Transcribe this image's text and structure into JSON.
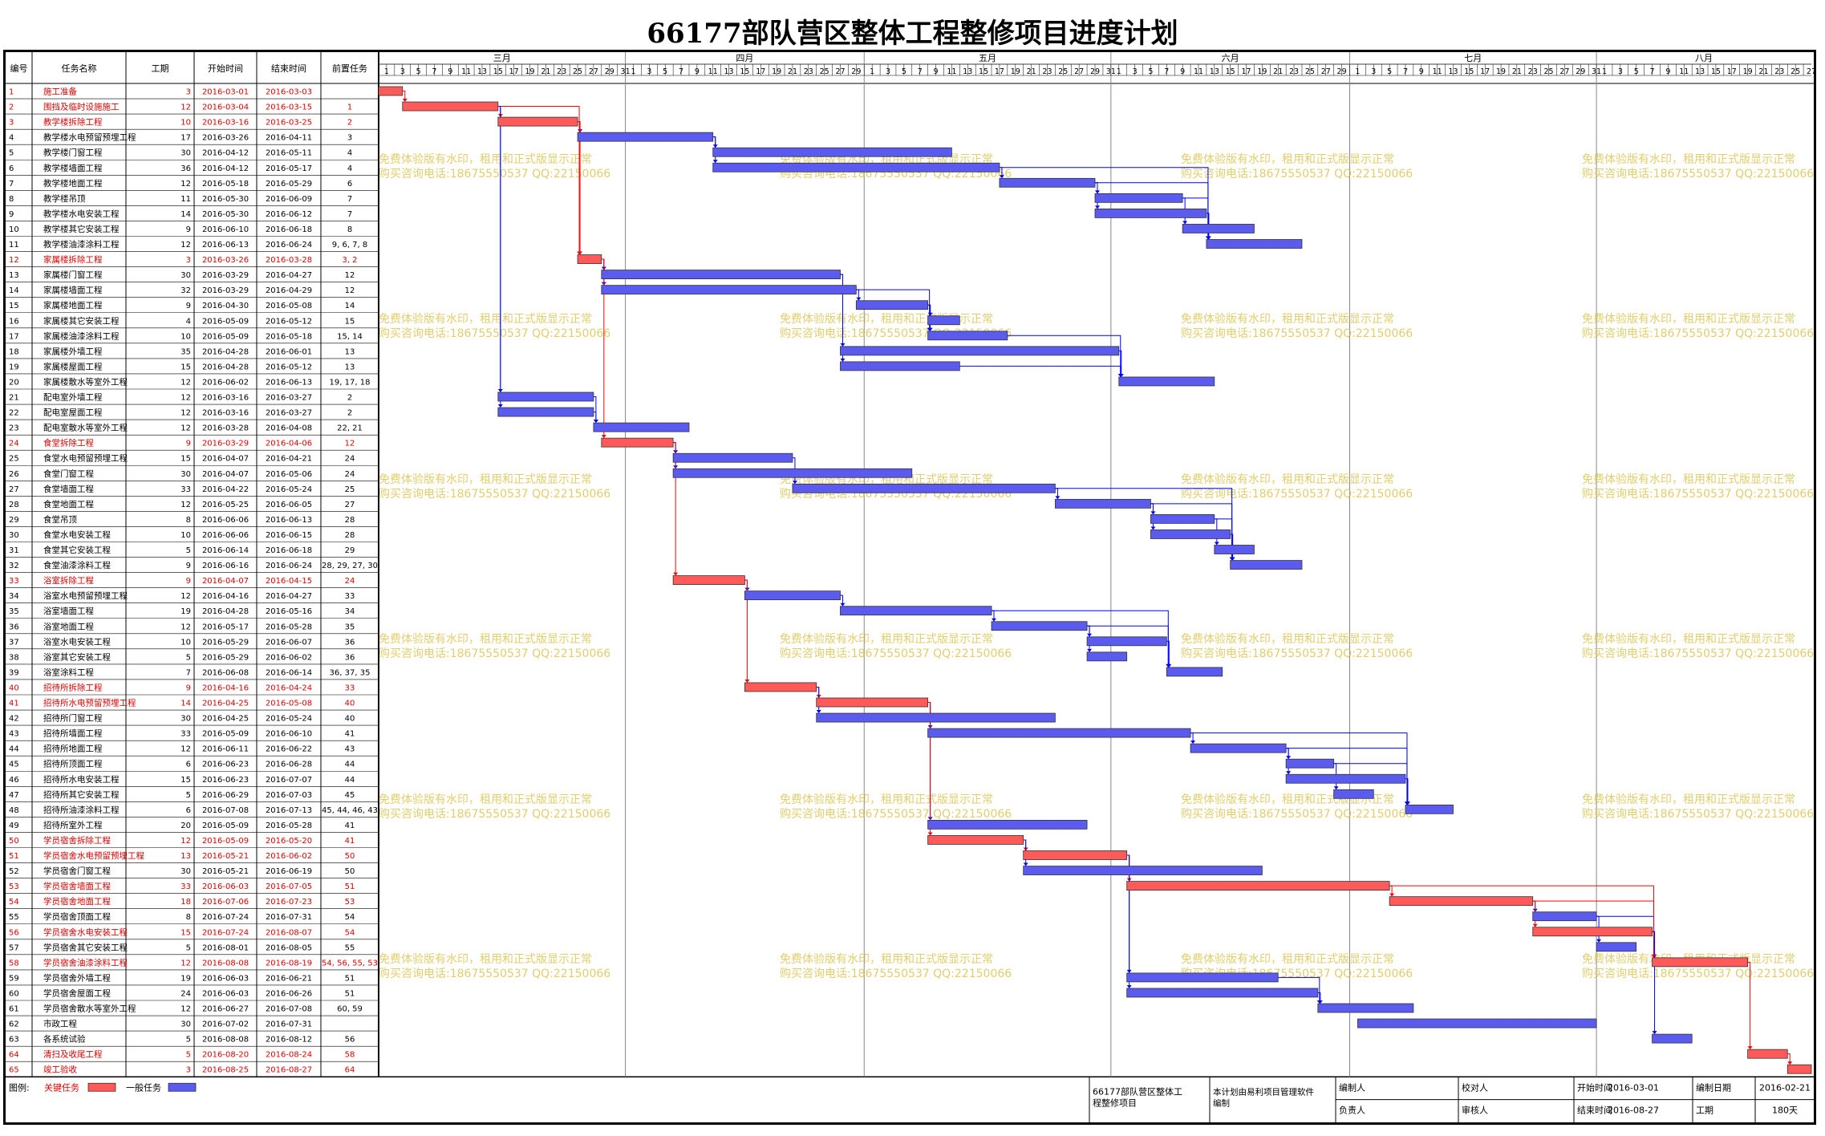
{
  "title": "66177部队营区整体工程整修项目进度计划",
  "columns": [
    "编号",
    "任务名称",
    "工期",
    "开始时间",
    "结束时间",
    "前置任务"
  ],
  "colors": {
    "critical": "#ff5a5a",
    "normal": "#5b5bf0",
    "critical_text": "#e00000",
    "link_normal": "#0000ff",
    "link_critical": "#ff0000"
  },
  "months": [
    {
      "label": "三月",
      "days": 31
    },
    {
      "label": "四月",
      "days": 30
    },
    {
      "label": "五月",
      "days": 31
    },
    {
      "label": "六月",
      "days": 30
    },
    {
      "label": "七月",
      "days": 31
    },
    {
      "label": "八月",
      "days": 27
    }
  ],
  "watermark": [
    "免费体验版有水印，租用和正式版显示正常",
    "购买咨询电话:18675550537 QQ:22150066"
  ],
  "chart_data": {
    "type": "gantt",
    "x_range": [
      "2016-03-01",
      "2016-08-27"
    ],
    "tasks": [
      {
        "id": "1",
        "name": "施工准备",
        "dur": "3",
        "start": "2016-03-01",
        "end": "2016-03-03",
        "pred": "",
        "critical": true
      },
      {
        "id": "2",
        "name": "围挡及临时设施施工",
        "dur": "12",
        "start": "2016-03-04",
        "end": "2016-03-15",
        "pred": "1",
        "critical": true
      },
      {
        "id": "3",
        "name": "教学楼拆除工程",
        "dur": "10",
        "start": "2016-03-16",
        "end": "2016-03-25",
        "pred": "2",
        "critical": true
      },
      {
        "id": "4",
        "name": "教学楼水电预留预埋工程",
        "dur": "17",
        "start": "2016-03-26",
        "end": "2016-04-11",
        "pred": "3",
        "critical": false
      },
      {
        "id": "5",
        "name": "教学楼门窗工程",
        "dur": "30",
        "start": "2016-04-12",
        "end": "2016-05-11",
        "pred": "4",
        "critical": false
      },
      {
        "id": "6",
        "name": "教学楼墙面工程",
        "dur": "36",
        "start": "2016-04-12",
        "end": "2016-05-17",
        "pred": "4",
        "critical": false
      },
      {
        "id": "7",
        "name": "教学楼地面工程",
        "dur": "12",
        "start": "2016-05-18",
        "end": "2016-05-29",
        "pred": "6",
        "critical": false
      },
      {
        "id": "8",
        "name": "教学楼吊顶",
        "dur": "11",
        "start": "2016-05-30",
        "end": "2016-06-09",
        "pred": "7",
        "critical": false
      },
      {
        "id": "9",
        "name": "教学楼水电安装工程",
        "dur": "14",
        "start": "2016-05-30",
        "end": "2016-06-12",
        "pred": "7",
        "critical": false
      },
      {
        "id": "10",
        "name": "教学楼其它安装工程",
        "dur": "9",
        "start": "2016-06-10",
        "end": "2016-06-18",
        "pred": "8",
        "critical": false
      },
      {
        "id": "11",
        "name": "教学楼油漆涂料工程",
        "dur": "12",
        "start": "2016-06-13",
        "end": "2016-06-24",
        "pred": "9, 6, 7, 8",
        "critical": false
      },
      {
        "id": "12",
        "name": "家属楼拆除工程",
        "dur": "3",
        "start": "2016-03-26",
        "end": "2016-03-28",
        "pred": "3, 2",
        "critical": true
      },
      {
        "id": "13",
        "name": "家属楼门窗工程",
        "dur": "30",
        "start": "2016-03-29",
        "end": "2016-04-27",
        "pred": "12",
        "critical": false
      },
      {
        "id": "14",
        "name": "家属楼墙面工程",
        "dur": "32",
        "start": "2016-03-29",
        "end": "2016-04-29",
        "pred": "12",
        "critical": false
      },
      {
        "id": "15",
        "name": "家属楼地面工程",
        "dur": "9",
        "start": "2016-04-30",
        "end": "2016-05-08",
        "pred": "14",
        "critical": false
      },
      {
        "id": "16",
        "name": "家属楼其它安装工程",
        "dur": "4",
        "start": "2016-05-09",
        "end": "2016-05-12",
        "pred": "15",
        "critical": false
      },
      {
        "id": "17",
        "name": "家属楼油漆涂料工程",
        "dur": "10",
        "start": "2016-05-09",
        "end": "2016-05-18",
        "pred": "15, 14",
        "critical": false
      },
      {
        "id": "18",
        "name": "家属楼外墙工程",
        "dur": "35",
        "start": "2016-04-28",
        "end": "2016-06-01",
        "pred": "13",
        "critical": false
      },
      {
        "id": "19",
        "name": "家属楼屋面工程",
        "dur": "15",
        "start": "2016-04-28",
        "end": "2016-05-12",
        "pred": "13",
        "critical": false
      },
      {
        "id": "20",
        "name": "家属楼散水等室外工程",
        "dur": "12",
        "start": "2016-06-02",
        "end": "2016-06-13",
        "pred": "19, 17, 18",
        "critical": false
      },
      {
        "id": "21",
        "name": "配电室外墙工程",
        "dur": "12",
        "start": "2016-03-16",
        "end": "2016-03-27",
        "pred": "2",
        "critical": false
      },
      {
        "id": "22",
        "name": "配电室屋面工程",
        "dur": "12",
        "start": "2016-03-16",
        "end": "2016-03-27",
        "pred": "2",
        "critical": false
      },
      {
        "id": "23",
        "name": "配电室散水等室外工程",
        "dur": "12",
        "start": "2016-03-28",
        "end": "2016-04-08",
        "pred": "22, 21",
        "critical": false
      },
      {
        "id": "24",
        "name": "食堂拆除工程",
        "dur": "9",
        "start": "2016-03-29",
        "end": "2016-04-06",
        "pred": "12",
        "critical": true
      },
      {
        "id": "25",
        "name": "食堂水电预留预埋工程",
        "dur": "15",
        "start": "2016-04-07",
        "end": "2016-04-21",
        "pred": "24",
        "critical": false
      },
      {
        "id": "26",
        "name": "食堂门窗工程",
        "dur": "30",
        "start": "2016-04-07",
        "end": "2016-05-06",
        "pred": "24",
        "critical": false
      },
      {
        "id": "27",
        "name": "食堂墙面工程",
        "dur": "33",
        "start": "2016-04-22",
        "end": "2016-05-24",
        "pred": "25",
        "critical": false
      },
      {
        "id": "28",
        "name": "食堂地面工程",
        "dur": "12",
        "start": "2016-05-25",
        "end": "2016-06-05",
        "pred": "27",
        "critical": false
      },
      {
        "id": "29",
        "name": "食堂吊顶",
        "dur": "8",
        "start": "2016-06-06",
        "end": "2016-06-13",
        "pred": "28",
        "critical": false
      },
      {
        "id": "30",
        "name": "食堂水电安装工程",
        "dur": "10",
        "start": "2016-06-06",
        "end": "2016-06-15",
        "pred": "28",
        "critical": false
      },
      {
        "id": "31",
        "name": "食堂其它安装工程",
        "dur": "5",
        "start": "2016-06-14",
        "end": "2016-06-18",
        "pred": "29",
        "critical": false
      },
      {
        "id": "32",
        "name": "食堂油漆涂料工程",
        "dur": "9",
        "start": "2016-06-16",
        "end": "2016-06-24",
        "pred": "28, 29, 27, 30",
        "critical": false
      },
      {
        "id": "33",
        "name": "浴室拆除工程",
        "dur": "9",
        "start": "2016-04-07",
        "end": "2016-04-15",
        "pred": "24",
        "critical": true
      },
      {
        "id": "34",
        "name": "浴室水电预留预埋工程",
        "dur": "12",
        "start": "2016-04-16",
        "end": "2016-04-27",
        "pred": "33",
        "critical": false
      },
      {
        "id": "35",
        "name": "浴室墙面工程",
        "dur": "19",
        "start": "2016-04-28",
        "end": "2016-05-16",
        "pred": "34",
        "critical": false
      },
      {
        "id": "36",
        "name": "浴室地面工程",
        "dur": "12",
        "start": "2016-05-17",
        "end": "2016-05-28",
        "pred": "35",
        "critical": false
      },
      {
        "id": "37",
        "name": "浴室水电安装工程",
        "dur": "10",
        "start": "2016-05-29",
        "end": "2016-06-07",
        "pred": "36",
        "critical": false
      },
      {
        "id": "38",
        "name": "浴室其它安装工程",
        "dur": "5",
        "start": "2016-05-29",
        "end": "2016-06-02",
        "pred": "36",
        "critical": false
      },
      {
        "id": "39",
        "name": "浴室涂料工程",
        "dur": "7",
        "start": "2016-06-08",
        "end": "2016-06-14",
        "pred": "36, 37, 35",
        "critical": false
      },
      {
        "id": "40",
        "name": "招待所拆除工程",
        "dur": "9",
        "start": "2016-04-16",
        "end": "2016-04-24",
        "pred": "33",
        "critical": true
      },
      {
        "id": "41",
        "name": "招待所水电预留预埋工程",
        "dur": "14",
        "start": "2016-04-25",
        "end": "2016-05-08",
        "pred": "40",
        "critical": true
      },
      {
        "id": "42",
        "name": "招待所门窗工程",
        "dur": "30",
        "start": "2016-04-25",
        "end": "2016-05-24",
        "pred": "40",
        "critical": false
      },
      {
        "id": "43",
        "name": "招待所墙面工程",
        "dur": "33",
        "start": "2016-05-09",
        "end": "2016-06-10",
        "pred": "41",
        "critical": false
      },
      {
        "id": "44",
        "name": "招待所地面工程",
        "dur": "12",
        "start": "2016-06-11",
        "end": "2016-06-22",
        "pred": "43",
        "critical": false
      },
      {
        "id": "45",
        "name": "招待所顶面工程",
        "dur": "6",
        "start": "2016-06-23",
        "end": "2016-06-28",
        "pred": "44",
        "critical": false
      },
      {
        "id": "46",
        "name": "招待所水电安装工程",
        "dur": "15",
        "start": "2016-06-23",
        "end": "2016-07-07",
        "pred": "44",
        "critical": false
      },
      {
        "id": "47",
        "name": "招待所其它安装工程",
        "dur": "5",
        "start": "2016-06-29",
        "end": "2016-07-03",
        "pred": "45",
        "critical": false
      },
      {
        "id": "48",
        "name": "招待所油漆涂料工程",
        "dur": "6",
        "start": "2016-07-08",
        "end": "2016-07-13",
        "pred": "45, 44, 46, 43",
        "critical": false
      },
      {
        "id": "49",
        "name": "招待所室外工程",
        "dur": "20",
        "start": "2016-05-09",
        "end": "2016-05-28",
        "pred": "41",
        "critical": false
      },
      {
        "id": "50",
        "name": "学员宿舍拆除工程",
        "dur": "12",
        "start": "2016-05-09",
        "end": "2016-05-20",
        "pred": "41",
        "critical": true
      },
      {
        "id": "51",
        "name": "学员宿舍水电预留预埋工程",
        "dur": "13",
        "start": "2016-05-21",
        "end": "2016-06-02",
        "pred": "50",
        "critical": true
      },
      {
        "id": "52",
        "name": "学员宿舍门窗工程",
        "dur": "30",
        "start": "2016-05-21",
        "end": "2016-06-19",
        "pred": "50",
        "critical": false
      },
      {
        "id": "53",
        "name": "学员宿舍墙面工程",
        "dur": "33",
        "start": "2016-06-03",
        "end": "2016-07-05",
        "pred": "51",
        "critical": true
      },
      {
        "id": "54",
        "name": "学员宿舍地面工程",
        "dur": "18",
        "start": "2016-07-06",
        "end": "2016-07-23",
        "pred": "53",
        "critical": true
      },
      {
        "id": "55",
        "name": "学员宿舍顶面工程",
        "dur": "8",
        "start": "2016-07-24",
        "end": "2016-07-31",
        "pred": "54",
        "critical": false
      },
      {
        "id": "56",
        "name": "学员宿舍水电安装工程",
        "dur": "15",
        "start": "2016-07-24",
        "end": "2016-08-07",
        "pred": "54",
        "critical": true
      },
      {
        "id": "57",
        "name": "学员宿舍其它安装工程",
        "dur": "5",
        "start": "2016-08-01",
        "end": "2016-08-05",
        "pred": "55",
        "critical": false
      },
      {
        "id": "58",
        "name": "学员宿舍油漆涂料工程",
        "dur": "12",
        "start": "2016-08-08",
        "end": "2016-08-19",
        "pred": "54, 56, 55, 53",
        "critical": true
      },
      {
        "id": "59",
        "name": "学员宿舍外墙工程",
        "dur": "19",
        "start": "2016-06-03",
        "end": "2016-06-21",
        "pred": "51",
        "critical": false
      },
      {
        "id": "60",
        "name": "学员宿舍屋面工程",
        "dur": "24",
        "start": "2016-06-03",
        "end": "2016-06-26",
        "pred": "51",
        "critical": false
      },
      {
        "id": "61",
        "name": "学员宿舍散水等室外工程",
        "dur": "12",
        "start": "2016-06-27",
        "end": "2016-07-08",
        "pred": "60, 59",
        "critical": false
      },
      {
        "id": "62",
        "name": "市政工程",
        "dur": "30",
        "start": "2016-07-02",
        "end": "2016-07-31",
        "pred": "",
        "critical": false
      },
      {
        "id": "63",
        "name": "各系统试验",
        "dur": "5",
        "start": "2016-08-08",
        "end": "2016-08-12",
        "pred": "56",
        "critical": false
      },
      {
        "id": "64",
        "name": "清扫及收尾工程",
        "dur": "5",
        "start": "2016-08-20",
        "end": "2016-08-24",
        "pred": "58",
        "critical": true
      },
      {
        "id": "65",
        "name": "竣工验收",
        "dur": "3",
        "start": "2016-08-25",
        "end": "2016-08-27",
        "pred": "64",
        "critical": true
      }
    ]
  },
  "footer": {
    "legend_label": "图例:",
    "critical_label": "关键任务",
    "normal_label": "一般任务",
    "project_name": "66177部队营区整体工程整修项目",
    "software_note": "本计划由易利项目管理软件编制",
    "editor_label": "编制人",
    "checker_label": "校对人",
    "start_label": "开始时间",
    "start_value": "2016-03-01",
    "date_label": "编制日期",
    "date_value": "2016-02-21",
    "manager_label": "负责人",
    "reviewer_label": "审核人",
    "end_label": "结束时间",
    "end_value": "2016-08-27",
    "duration_label": "工期",
    "duration_value": "180天"
  }
}
